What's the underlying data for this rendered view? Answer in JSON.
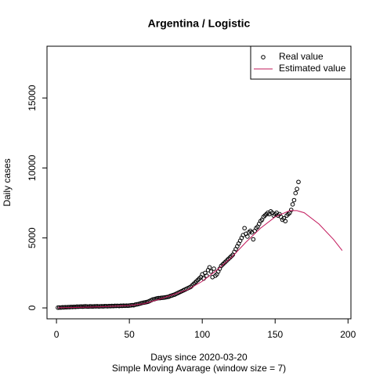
{
  "chart_data": {
    "type": "scatter_line",
    "title": "Argentina / Logistic",
    "x_label": "Days since 2020-03-20",
    "subtitle": "Simple Moving Avarage (window size = 7)",
    "y_label": "Daily cases",
    "xlim": [
      -6.5,
      202
    ],
    "ylim": [
      -780,
      18700
    ],
    "xticks": [
      0,
      50,
      100,
      150,
      200
    ],
    "yticks": [
      0,
      5000,
      10000,
      15000
    ],
    "legend": "top-right",
    "series": [
      {
        "name": "Real value",
        "color": "#000000",
        "kind": "points",
        "x": [
          1,
          2,
          3,
          4,
          5,
          6,
          7,
          8,
          9,
          10,
          11,
          12,
          13,
          14,
          15,
          16,
          17,
          18,
          19,
          20,
          21,
          22,
          23,
          24,
          25,
          26,
          27,
          28,
          29,
          30,
          31,
          32,
          33,
          34,
          35,
          36,
          37,
          38,
          39,
          40,
          41,
          42,
          43,
          44,
          45,
          46,
          47,
          48,
          49,
          50,
          51,
          52,
          53,
          54,
          55,
          56,
          57,
          58,
          59,
          60,
          61,
          62,
          63,
          64,
          65,
          66,
          67,
          68,
          69,
          70,
          71,
          72,
          73,
          74,
          75,
          76,
          77,
          78,
          79,
          80,
          81,
          82,
          83,
          84,
          85,
          86,
          87,
          88,
          89,
          90,
          91,
          92,
          93,
          94,
          95,
          96,
          97,
          98,
          99,
          100,
          101,
          102,
          103,
          104,
          105,
          106,
          107,
          108,
          109,
          110,
          111,
          112,
          113,
          114,
          115,
          116,
          117,
          118,
          119,
          120,
          121,
          122,
          123,
          124,
          125,
          126,
          127,
          128,
          129,
          130,
          131,
          132,
          133,
          134,
          135,
          136,
          137,
          138,
          139,
          140,
          141,
          142,
          143,
          144,
          145,
          146,
          147,
          148,
          149,
          150,
          151,
          152,
          153,
          154,
          155,
          156,
          157,
          158,
          159,
          160,
          161,
          162,
          163,
          164,
          165,
          166
        ],
        "values": [
          20,
          30,
          25,
          40,
          35,
          50,
          45,
          60,
          55,
          70,
          65,
          80,
          70,
          90,
          85,
          95,
          100,
          90,
          105,
          110,
          100,
          95,
          110,
          105,
          100,
          115,
          110,
          120,
          105,
          115,
          120,
          110,
          125,
          130,
          115,
          135,
          125,
          140,
          130,
          145,
          140,
          150,
          135,
          155,
          145,
          160,
          150,
          165,
          155,
          170,
          180,
          200,
          190,
          230,
          250,
          270,
          300,
          330,
          360,
          380,
          400,
          420,
          450,
          500,
          550,
          600,
          620,
          650,
          680,
          700,
          700,
          720,
          730,
          740,
          760,
          780,
          800,
          850,
          880,
          920,
          950,
          1000,
          1050,
          1100,
          1150,
          1200,
          1250,
          1300,
          1350,
          1400,
          1450,
          1500,
          1600,
          1700,
          1800,
          1900,
          2000,
          2100,
          2200,
          2400,
          2100,
          2500,
          2300,
          2700,
          2900,
          2600,
          2200,
          2800,
          2300,
          2400,
          2600,
          2800,
          3000,
          3100,
          3200,
          3300,
          3400,
          3500,
          3600,
          3700,
          3800,
          4000,
          4200,
          4400,
          4600,
          4800,
          5000,
          5200,
          5700,
          5300,
          5100,
          5400,
          5500,
          5400,
          4900,
          5500,
          5700,
          5800,
          6000,
          6200,
          6300,
          6500,
          6600,
          6700,
          6800,
          6700,
          6900,
          6800,
          6600,
          6700,
          6800,
          6600,
          6700,
          6500,
          6300,
          6400,
          6200,
          6600,
          6700,
          6800,
          7000,
          7400,
          7700,
          8200,
          8500,
          9000
        ]
      },
      {
        "name": "Estimated value",
        "color": "#c2185b",
        "kind": "line",
        "x": [
          1,
          10,
          20,
          30,
          40,
          50,
          60,
          70,
          80,
          90,
          100,
          110,
          120,
          130,
          140,
          150,
          160,
          165,
          170,
          180,
          190,
          196
        ],
        "values": [
          10,
          25,
          50,
          80,
          120,
          170,
          300,
          600,
          950,
          1300,
          1900,
          2700,
          3600,
          4700,
          5700,
          6500,
          6950,
          6950,
          6800,
          6000,
          4900,
          4100
        ]
      }
    ]
  }
}
